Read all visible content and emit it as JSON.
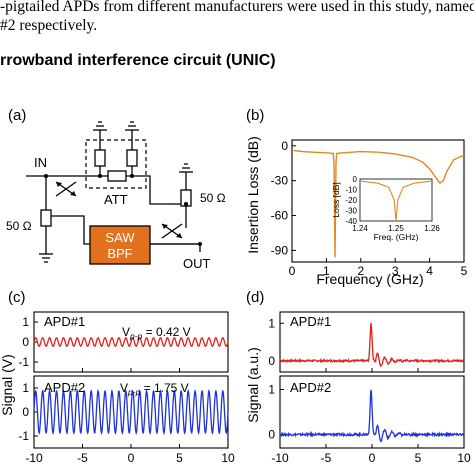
{
  "intro": {
    "line1": "-pigtailed APDs from different manufacturers were used in this study, named",
    "line2": "#2 respectively."
  },
  "section_title": "rrowband interference circuit (UNIC)",
  "panels": {
    "a": {
      "label": "(a)",
      "in_label": "IN",
      "out_label": "OUT",
      "att_label": "ATT",
      "saw_line1": "SAW",
      "saw_line2": "BPF",
      "res_left": "50 Ω",
      "res_right": "50 Ω"
    },
    "b": {
      "label": "(b)",
      "ylabel": "Insertion  Loss (dB)",
      "xlabel": "Frequency (GHz)",
      "inset_ylabel": "Loss [dB]",
      "inset_xlabel": "Freq. (GHz)"
    },
    "c": {
      "label": "(c)",
      "ylabel": "Signal (V)"
    },
    "d": {
      "label": "(d)",
      "ylabel": "Signal (a.u.)"
    }
  },
  "chart_data": [
    {
      "type": "line",
      "panel": "b",
      "xlabel": "Frequency (GHz)",
      "ylabel": "Insertion  Loss (dB)",
      "xlim": [
        0,
        5
      ],
      "ylim": [
        -100,
        5
      ],
      "xticks": [
        "0",
        "1",
        "2",
        "3",
        "4",
        "5"
      ],
      "yticks": [
        "0",
        "-30",
        "-60",
        "-90"
      ],
      "color": "#e08a1e",
      "x": [
        0.05,
        0.3,
        0.6,
        1.0,
        1.2,
        1.22,
        1.25,
        1.28,
        1.3,
        1.5,
        2.0,
        2.5,
        3.0,
        3.5,
        3.8,
        4.0,
        4.1,
        4.2,
        4.3,
        4.4,
        4.5,
        4.7,
        5.0
      ],
      "y": [
        -4,
        -5,
        -5.5,
        -6,
        -6.5,
        -15,
        -96,
        -15,
        -6.5,
        -6,
        -5,
        -5.5,
        -7,
        -10,
        -14,
        -20,
        -24,
        -28,
        -32,
        -30,
        -22,
        -12,
        -8
      ],
      "inset": {
        "xlim": [
          1.24,
          1.26
        ],
        "ylim": [
          -40,
          0
        ],
        "xticks": [
          "1.24",
          "1.25",
          "1.26"
        ],
        "yticks": [
          "0",
          "-10",
          "-20",
          "-30",
          "-40"
        ],
        "x": [
          1.24,
          1.245,
          1.248,
          1.2495,
          1.25,
          1.2505,
          1.252,
          1.255,
          1.26
        ],
        "y": [
          -2,
          -4,
          -8,
          -20,
          -40,
          -20,
          -8,
          -4,
          -2
        ]
      }
    },
    {
      "type": "line",
      "panel": "c",
      "ylabel": "Signal (V)",
      "xticks": [
        "-10",
        "-5",
        "0",
        "5",
        "10"
      ],
      "xlim": [
        -10,
        10
      ],
      "series": [
        {
          "name": "APD#1",
          "annotation": "V",
          "annotation_sub": "p-p",
          "annotation_value": " = 0.42 V",
          "color": "#e0201b",
          "amplitude_pp": 0.42,
          "ylim": [
            -1.5,
            1.5
          ],
          "yticks": [
            "1",
            "0",
            "-1"
          ],
          "cycles": 28
        },
        {
          "name": "APD#2",
          "annotation": "V",
          "annotation_sub": "p-p",
          "annotation_value": " = 1.75 V",
          "color": "#1f33d6",
          "amplitude_pp": 1.75,
          "ylim": [
            -1.5,
            1.5
          ],
          "yticks": [
            "1",
            "0",
            "-1"
          ],
          "cycles": 28
        }
      ]
    },
    {
      "type": "line",
      "panel": "d",
      "ylabel": "Signal (a.u.)",
      "xticks": [
        "-10",
        "-5",
        "0",
        "5",
        "10"
      ],
      "xlim": [
        -10,
        10
      ],
      "series": [
        {
          "name": "APD#1",
          "color": "#e0201b",
          "peak": 1.0,
          "ylim": [
            -0.3,
            1.3
          ],
          "yticks": [
            "1",
            "0"
          ]
        },
        {
          "name": "APD#2",
          "color": "#1f33d6",
          "peak": 1.0,
          "ylim": [
            -0.3,
            1.3
          ],
          "yticks": [
            "1",
            "0"
          ]
        }
      ]
    }
  ]
}
